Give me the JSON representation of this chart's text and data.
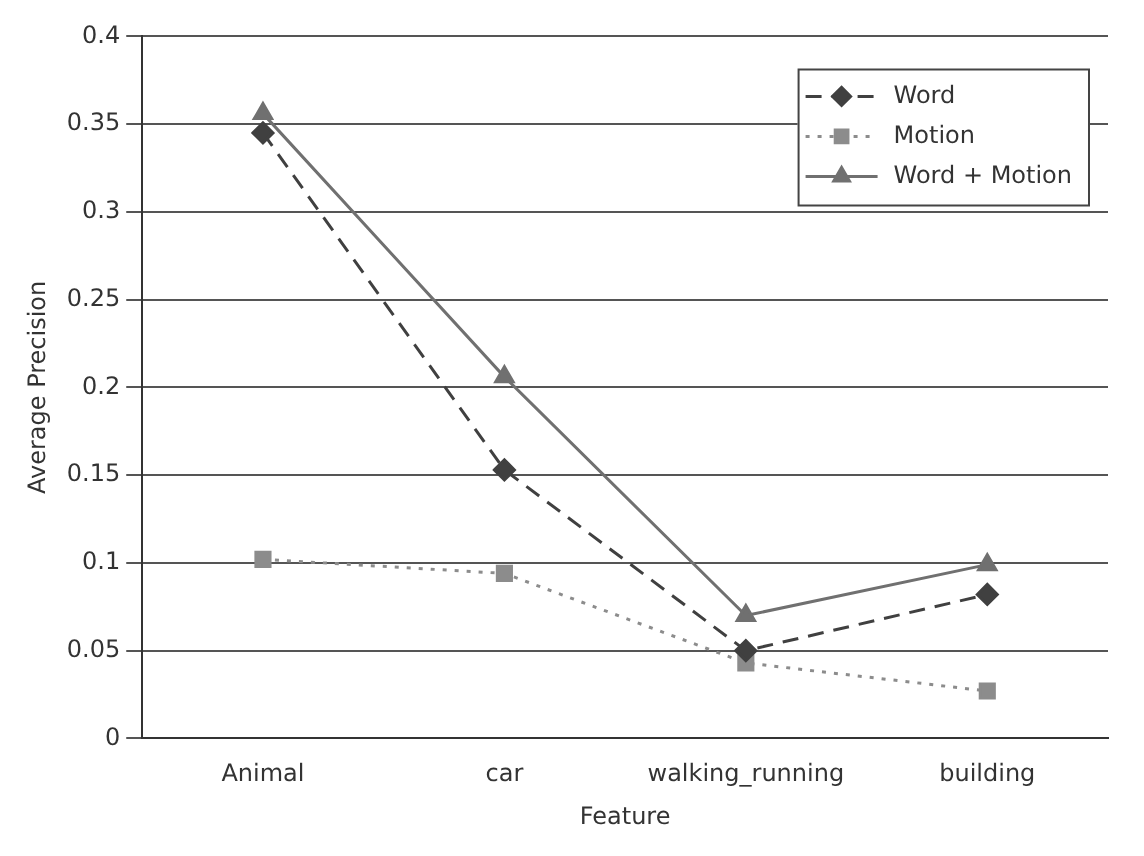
{
  "chart_data": {
    "type": "line",
    "xlabel": "Feature",
    "ylabel": "Average Precision",
    "categories": [
      "Animal",
      "car",
      "walking_running",
      "building"
    ],
    "series": [
      {
        "name": "Word",
        "color": "#404040",
        "values": [
          0.345,
          0.153,
          0.05,
          0.082
        ],
        "marker": "diamond",
        "line_style": "dashed"
      },
      {
        "name": "Motion",
        "color": "#8c8c8c",
        "values": [
          0.102,
          0.094,
          0.043,
          0.027
        ],
        "marker": "square",
        "line_style": "dotted"
      },
      {
        "name": "Word + Motion",
        "color": "#707070",
        "values": [
          0.356,
          0.206,
          0.07,
          0.099
        ],
        "marker": "triangle",
        "line_style": "solid"
      }
    ],
    "ylim": [
      0,
      0.4
    ],
    "yticks": [
      0,
      0.05,
      0.1,
      0.15,
      0.2,
      0.25,
      0.3,
      0.35,
      0.4
    ],
    "grid": "y",
    "legend": "top right"
  }
}
